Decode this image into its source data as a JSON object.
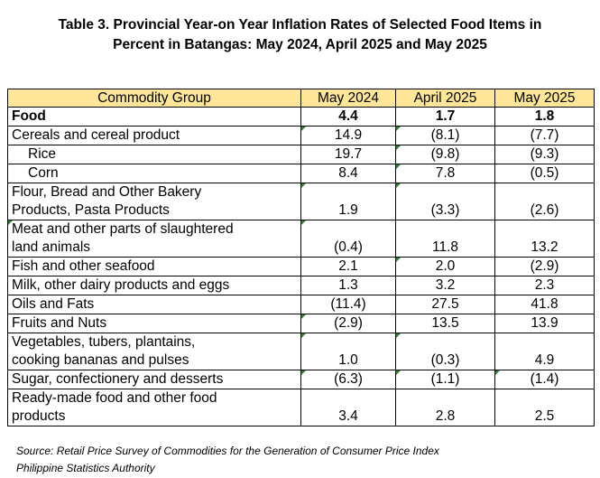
{
  "title_lines": [
    "Table 3. Provincial Year-on Year Inflation Rates of Selected Food Items in",
    "Percent in Batangas: May 2024, April 2025 and May 2025"
  ],
  "table": {
    "headers": [
      "Commodity Group",
      "May 2024",
      "April 2025",
      "May 2025"
    ],
    "header_color": "#ffe699",
    "rows": [
      {
        "label": [
          "Food"
        ],
        "values": [
          "4.4",
          "1.7",
          "1.8"
        ],
        "bold": true
      },
      {
        "label": [
          "Cereals and cereal product"
        ],
        "values": [
          "14.9",
          "(8.1)",
          "(7.7)"
        ]
      },
      {
        "label": [
          "Rice"
        ],
        "values": [
          "19.7",
          "(9.8)",
          "(9.3)"
        ],
        "indent": true
      },
      {
        "label": [
          "Corn"
        ],
        "values": [
          "8.4",
          "7.8",
          "(0.5)"
        ],
        "indent": true
      },
      {
        "label": [
          "Flour, Bread and Other Bakery",
          "Products, Pasta Products"
        ],
        "values": [
          "1.9",
          "(3.3)",
          "(2.6)"
        ]
      },
      {
        "label": [
          "Meat and other parts of slaughtered",
          "land animals"
        ],
        "values": [
          "(0.4)",
          "11.8",
          "13.2"
        ]
      },
      {
        "label": [
          "Fish and other seafood"
        ],
        "values": [
          "2.1",
          "2.0",
          "(2.9)"
        ]
      },
      {
        "label": [
          "Milk, other dairy products and eggs"
        ],
        "values": [
          "1.3",
          "3.2",
          "2.3"
        ]
      },
      {
        "label": [
          "Oils and Fats"
        ],
        "values": [
          "(11.4)",
          "27.5",
          "41.8"
        ]
      },
      {
        "label": [
          "Fruits and Nuts"
        ],
        "values": [
          "(2.9)",
          "13.5",
          "13.9"
        ]
      },
      {
        "label": [
          "Vegetables, tubers, plantains,",
          "cooking bananas and pulses"
        ],
        "values": [
          "1.0",
          "(0.3)",
          "4.9"
        ]
      },
      {
        "label": [
          "Sugar, confectionery and desserts"
        ],
        "values": [
          "(6.3)",
          "(1.1)",
          "(1.4)"
        ]
      },
      {
        "label": [
          "Ready-made food and other food",
          "products"
        ],
        "values": [
          "3.4",
          "2.8",
          "2.5"
        ]
      }
    ]
  },
  "source_lines": [
    "Source: Retail Price Survey of Commodities for the Generation of Consumer Price Index",
    "Philippine Statistics Authority"
  ],
  "error_indicator_color": "#2e7d32"
}
